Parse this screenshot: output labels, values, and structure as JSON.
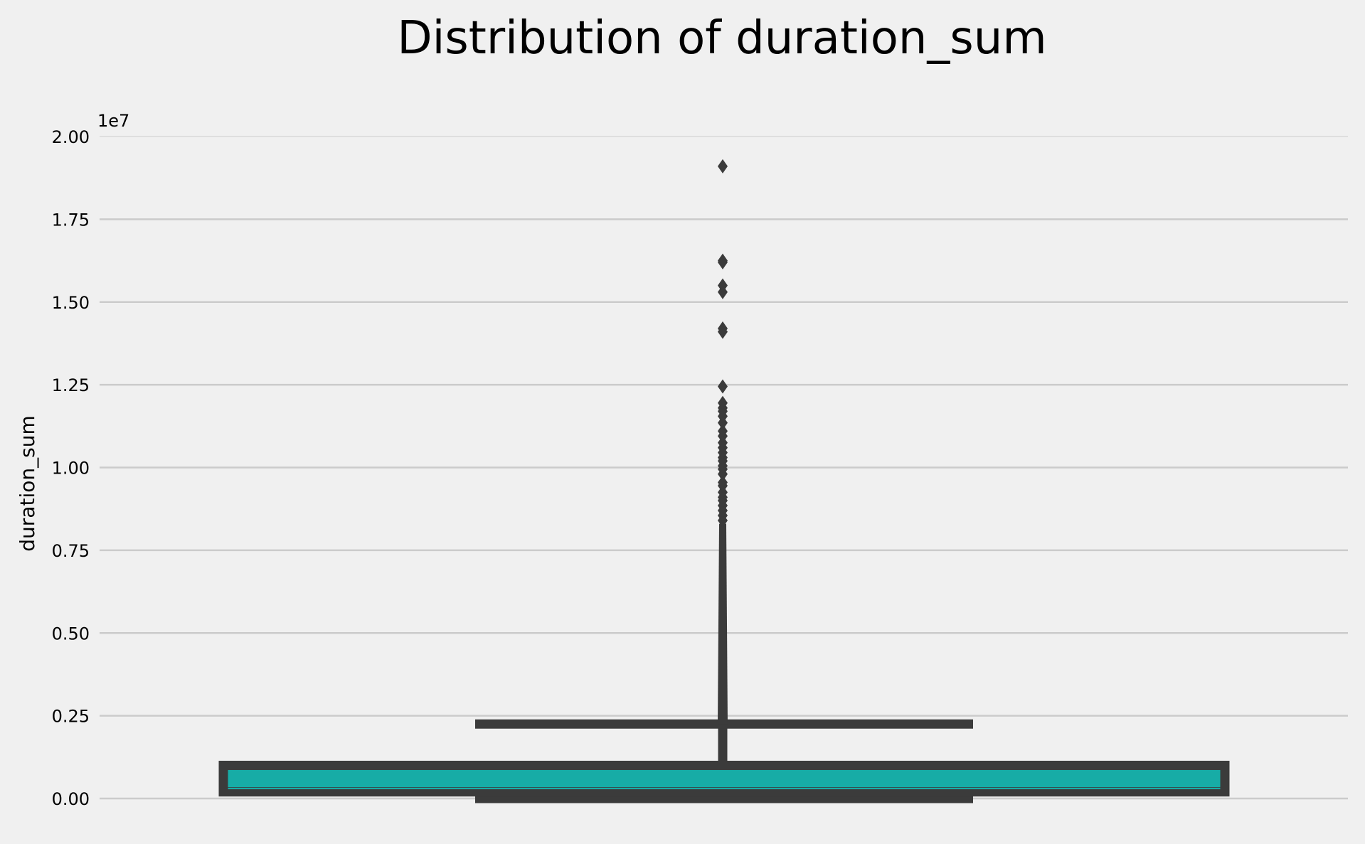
{
  "chart_data": {
    "type": "box",
    "title": "Distribution of duration_sum",
    "xlabel": "",
    "ylabel": "duration_sum",
    "y_offset_label": "1e7",
    "y_scale_factor": 10000000,
    "ylim": [
      0,
      20000000
    ],
    "yticks": [
      0,
      2500000,
      5000000,
      7500000,
      10000000,
      12500000,
      15000000,
      17500000,
      20000000
    ],
    "ytick_labels": [
      "0.00",
      "0.25",
      "0.50",
      "0.75",
      "1.00",
      "1.25",
      "1.50",
      "1.75",
      "2.00"
    ],
    "grid": "horizontal",
    "colors": {
      "background": "#f0f0f0",
      "box_fill": "#17aca6",
      "box_edge": "#3b3b3b",
      "grid": "#cbcbcb",
      "median": "#17aca6"
    },
    "box": {
      "whisker_low": 0,
      "q1": 200000,
      "median": 300000,
      "q3": 1000000,
      "whisker_high": 2250000
    },
    "outlier_band": [
      2250000,
      8300000
    ],
    "outliers": [
      8400000,
      8550000,
      8700000,
      8850000,
      9000000,
      9100000,
      9250000,
      9450000,
      9550000,
      9800000,
      9950000,
      10050000,
      10200000,
      10300000,
      10450000,
      10600000,
      10750000,
      10950000,
      11100000,
      11350000,
      11550000,
      11700000,
      11800000,
      11950000,
      12450000,
      14100000,
      14200000,
      15300000,
      15500000,
      16200000,
      16250000,
      19100000
    ]
  }
}
